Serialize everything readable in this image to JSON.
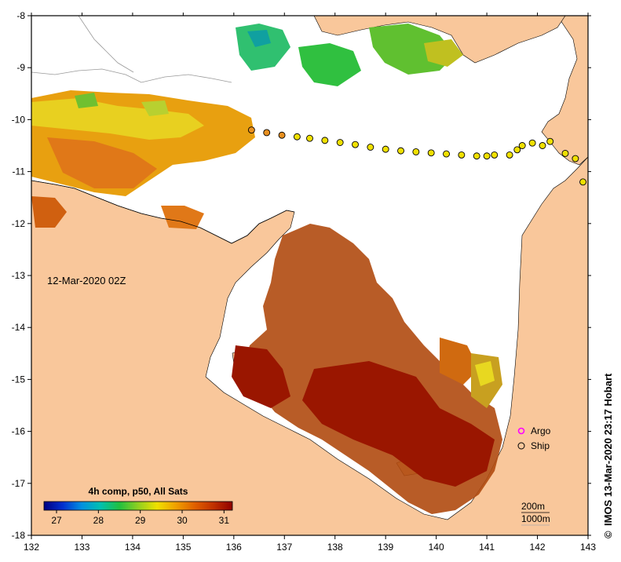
{
  "map": {
    "lon_range": [
      132,
      143
    ],
    "lat_range": [
      -18,
      -8
    ],
    "x_ticks": [
      "132",
      "133",
      "134",
      "135",
      "136",
      "137",
      "138",
      "139",
      "140",
      "141",
      "142",
      "143"
    ],
    "y_ticks": [
      "-8",
      "-9",
      "-10",
      "-11",
      "-12",
      "-13",
      "-14",
      "-15",
      "-16",
      "-17",
      "-18"
    ],
    "timestamp_label": "12-Mar-2020 02Z",
    "land_color": "#f9c79b",
    "frame_color": "#000000"
  },
  "colorbar": {
    "title": "4h comp, p50, All Sats",
    "ticks": [
      "27",
      "28",
      "29",
      "30",
      "31"
    ],
    "range": [
      26.7,
      31.2
    ],
    "colors": [
      "#000080",
      "#0030d0",
      "#0090e0",
      "#00c0b0",
      "#20c040",
      "#90d020",
      "#f0e000",
      "#f0a000",
      "#e06000",
      "#c03000",
      "#900000"
    ]
  },
  "legend": {
    "argo_label": "Argo",
    "argo_color": "#ff00ff",
    "ship_label": "Ship"
  },
  "contours": {
    "label_200m": "200m",
    "label_1000m": "1000m"
  },
  "credit": {
    "copyright_symbol": "©",
    "text": "IMOS 13-Mar-2020 23:17 Hobart"
  },
  "ship_track": [
    {
      "lon": 136.35,
      "lat": -10.2
    },
    {
      "lon": 136.65,
      "lat": -10.25
    },
    {
      "lon": 136.95,
      "lat": -10.3
    },
    {
      "lon": 137.25,
      "lat": -10.33
    },
    {
      "lon": 137.5,
      "lat": -10.36
    },
    {
      "lon": 137.8,
      "lat": -10.4
    },
    {
      "lon": 138.1,
      "lat": -10.44
    },
    {
      "lon": 138.4,
      "lat": -10.48
    },
    {
      "lon": 138.7,
      "lat": -10.53
    },
    {
      "lon": 139.0,
      "lat": -10.57
    },
    {
      "lon": 139.3,
      "lat": -10.6
    },
    {
      "lon": 139.6,
      "lat": -10.62
    },
    {
      "lon": 139.9,
      "lat": -10.64
    },
    {
      "lon": 140.2,
      "lat": -10.66
    },
    {
      "lon": 140.5,
      "lat": -10.68
    },
    {
      "lon": 140.8,
      "lat": -10.7
    },
    {
      "lon": 141.0,
      "lat": -10.7
    },
    {
      "lon": 141.15,
      "lat": -10.68
    },
    {
      "lon": 141.45,
      "lat": -10.68
    },
    {
      "lon": 141.6,
      "lat": -10.58
    },
    {
      "lon": 141.7,
      "lat": -10.5
    },
    {
      "lon": 141.9,
      "lat": -10.45
    },
    {
      "lon": 142.1,
      "lat": -10.5
    },
    {
      "lon": 142.25,
      "lat": -10.42
    },
    {
      "lon": 142.55,
      "lat": -10.65
    },
    {
      "lon": 142.75,
      "lat": -10.75
    },
    {
      "lon": 142.9,
      "lat": -11.2
    }
  ]
}
